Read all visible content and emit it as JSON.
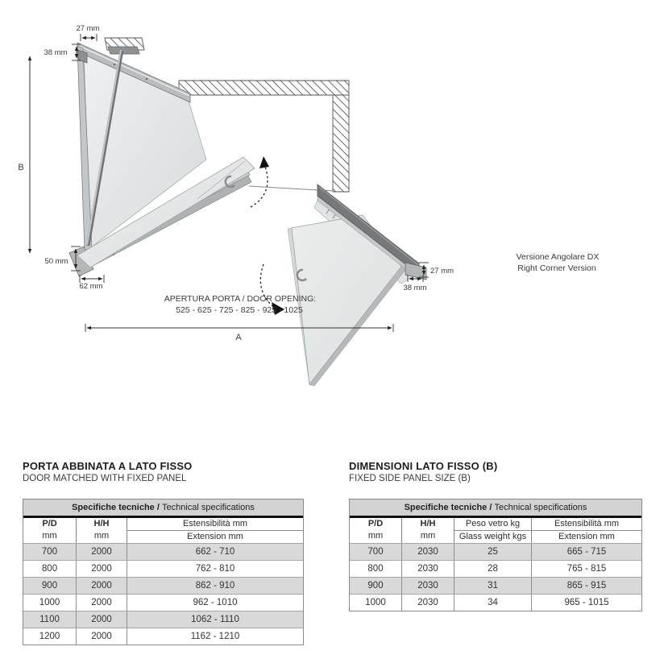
{
  "diagram": {
    "dim_27_top": "27 mm",
    "dim_38_top": "38 mm",
    "dim_b": "B",
    "dim_50": "50 mm",
    "dim_62": "62 mm",
    "dim_27_right": "27 mm",
    "dim_38_right": "38 mm",
    "dim_a": "A",
    "door_opening_title": "APERTURA PORTA / DOOR OPENING:",
    "door_opening_values": "525 - 625 - 725 - 825 - 925 - 1025",
    "version_it": "Versione Angolare DX",
    "version_en": "Right Corner Version"
  },
  "tables": {
    "left": {
      "title": "PORTA ABBINATA A LATO FISSO",
      "subtitle": "DOOR MATCHED WITH FIXED PANEL",
      "spec_bold": "Specifiche tecniche /",
      "spec_regular": "Technical specifications",
      "columns": [
        {
          "line1": "P/D",
          "line2": "mm",
          "split": false
        },
        {
          "line1": "H/H",
          "line2": "mm",
          "split": false
        },
        {
          "line1": "Estensibilità mm",
          "line2": "Extension mm",
          "split": true
        }
      ],
      "rows": [
        [
          "700",
          "2000",
          "662 - 710"
        ],
        [
          "800",
          "2000",
          "762 - 810"
        ],
        [
          "900",
          "2000",
          "862 - 910"
        ],
        [
          "1000",
          "2000",
          "962 - 1010"
        ],
        [
          "1100",
          "2000",
          "1062 - 1110"
        ],
        [
          "1200",
          "2000",
          "1162 - 1210"
        ]
      ]
    },
    "right": {
      "title": "DIMENSIONI LATO FISSO (B)",
      "subtitle": "FIXED SIDE PANEL SIZE (B)",
      "spec_bold": "Specifiche tecniche /",
      "spec_regular": "Technical specifications",
      "columns": [
        {
          "line1": "P/D",
          "line2": "mm",
          "split": false
        },
        {
          "line1": "H/H",
          "line2": "mm",
          "split": false
        },
        {
          "line1": "Peso vetro kg",
          "line2": "Glass weight kgs",
          "split": true
        },
        {
          "line1": "Estensibilità mm",
          "line2": "Extension mm",
          "split": true
        }
      ],
      "rows": [
        [
          "700",
          "2030",
          "25",
          "665 - 715"
        ],
        [
          "800",
          "2030",
          "28",
          "765 - 815"
        ],
        [
          "900",
          "2030",
          "31",
          "865 - 915"
        ],
        [
          "1000",
          "2030",
          "34",
          "965 - 1015"
        ]
      ]
    }
  }
}
